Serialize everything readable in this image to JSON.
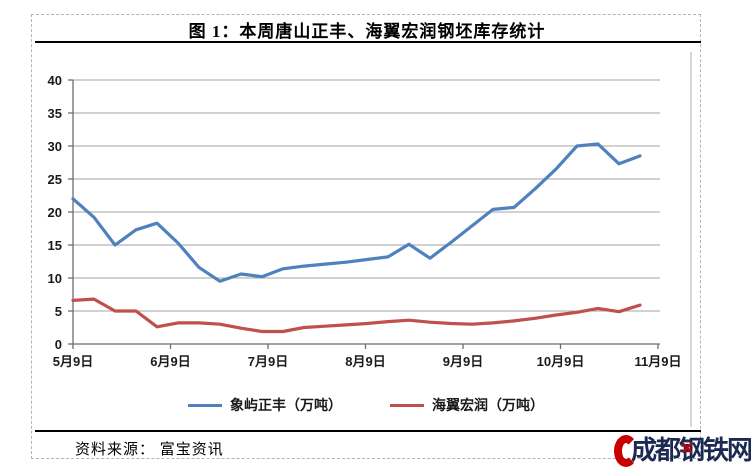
{
  "header": {
    "title": "图 1：本周唐山正丰、海翼宏润钢坯库存统计"
  },
  "source": {
    "text": "资料来源： 富宝资讯"
  },
  "logo": {
    "text": "成都钢铁网",
    "accent": "✕"
  },
  "colors": {
    "series_blue": "#4F81BD",
    "series_red": "#C0504D",
    "grid": "#a3a3a3",
    "axis": "#6e6e6e",
    "tick_label": "#1a1a1a",
    "frame_border": "#c9c9c9",
    "logo_navy": "#1c2a52",
    "logo_red": "#c80000"
  },
  "chart_data": {
    "type": "line",
    "title": "图 1：本周唐山正丰、海翼宏润钢坯库存统计",
    "xlabel": "",
    "ylabel": "",
    "ylim": [
      0,
      40
    ],
    "y_ticks": [
      0,
      5,
      10,
      15,
      20,
      25,
      30,
      35,
      40
    ],
    "x_tick_labels": [
      "5月9日",
      "6月9日",
      "7月9日",
      "8月9日",
      "9月9日",
      "10月9日",
      "11月9日"
    ],
    "grid": true,
    "legend_position": "bottom",
    "series": [
      {
        "name": "象屿正丰（万吨）",
        "color": "#4F81BD",
        "values": [
          22,
          19.2,
          15,
          17.3,
          18.3,
          15.3,
          11.6,
          9.5,
          10.6,
          10.2,
          11.4,
          11.8,
          12.1,
          12.4,
          12.8,
          13.2,
          15.1,
          13,
          15.4,
          17.9,
          20.4,
          20.7,
          23.5,
          26.5,
          30,
          30.3,
          27.3,
          28.5
        ]
      },
      {
        "name": "海翼宏润（万吨）",
        "color": "#C0504D",
        "values": [
          6.6,
          6.8,
          5,
          5,
          2.6,
          3.2,
          3.2,
          3,
          2.4,
          1.9,
          1.9,
          2.5,
          2.7,
          2.9,
          3.1,
          3.4,
          3.6,
          3.3,
          3.1,
          3,
          3.2,
          3.5,
          3.9,
          4.4,
          4.8,
          5.4,
          4.9,
          5.9
        ]
      }
    ]
  }
}
